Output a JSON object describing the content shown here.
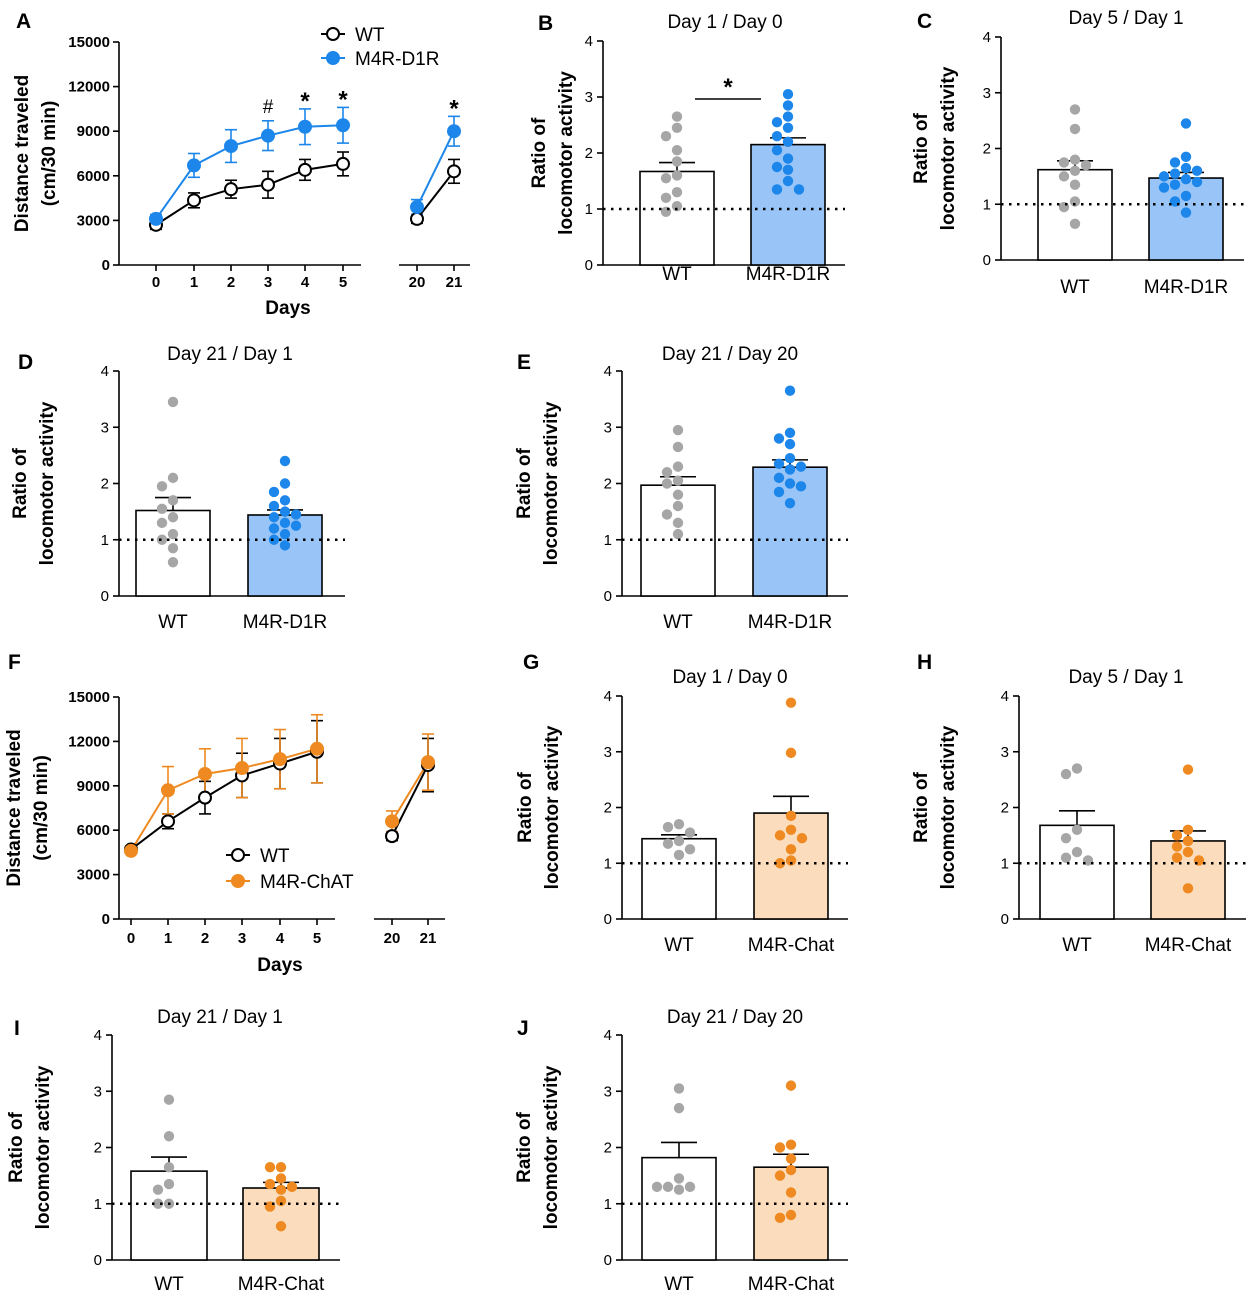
{
  "colors": {
    "wt_point": "#a6a6a6",
    "d1r_line": "#1c86ea",
    "d1r_bar": "#98c4f7",
    "chat_line": "#ee8a21",
    "chat_bar": "#fbdcbd"
  },
  "chart_data": [
    {
      "id": "A",
      "type": "line",
      "panel_label": "A",
      "xlabel": "Days",
      "ylabel": [
        "Distance traveled",
        "(cm/30 min)"
      ],
      "ylim": [
        0,
        15000
      ],
      "yticks": [
        0,
        3000,
        6000,
        9000,
        12000,
        15000
      ],
      "x_groups": [
        [
          "0",
          "1",
          "2",
          "3",
          "4",
          "5"
        ],
        [
          "20",
          "21"
        ]
      ],
      "legend": [
        "WT",
        "M4R-D1R"
      ],
      "annotations": {
        "3": "#",
        "4": "*",
        "5": "*",
        "21": "*"
      },
      "series": [
        {
          "name": "WT",
          "days": [
            "0",
            "1",
            "2",
            "3",
            "4",
            "5",
            "20",
            "21"
          ],
          "values": [
            2700,
            4350,
            5100,
            5400,
            6400,
            6800,
            3100,
            6300
          ],
          "errors": [
            300,
            500,
            600,
            900,
            700,
            800,
            300,
            800
          ]
        },
        {
          "name": "M4R-D1R",
          "days": [
            "0",
            "1",
            "2",
            "3",
            "4",
            "5",
            "20",
            "21"
          ],
          "values": [
            3100,
            6700,
            8000,
            8700,
            9300,
            9400,
            3900,
            9000
          ],
          "errors": [
            300,
            800,
            1100,
            1000,
            1200,
            1200,
            500,
            1000
          ]
        }
      ]
    },
    {
      "id": "B",
      "type": "bar",
      "panel_label": "B",
      "title": "Day 1 / Day 0",
      "ylabel": [
        "Ratio  of",
        "locomotor activity"
      ],
      "ylim": [
        0,
        4
      ],
      "yticks": [
        0,
        1,
        2,
        3,
        4
      ],
      "categories": [
        "WT",
        "M4R-D1R"
      ],
      "values": [
        1.67,
        2.15
      ],
      "errors": [
        0.16,
        0.12
      ],
      "points": [
        [
          2.65,
          2.45,
          2.3,
          2.05,
          1.85,
          1.6,
          1.55,
          1.3,
          1.2,
          1.05,
          0.95
        ],
        [
          3.05,
          2.85,
          2.65,
          2.55,
          2.45,
          2.3,
          2.2,
          2.05,
          1.9,
          1.75,
          1.7,
          1.5,
          1.35,
          1.35
        ]
      ],
      "significance": "*",
      "refline": 1
    },
    {
      "id": "C",
      "type": "bar",
      "panel_label": "C",
      "title": "Day 5 / Day 1",
      "ylabel": [
        "Ratio  of",
        "locomotor activity"
      ],
      "ylim": [
        0,
        4
      ],
      "yticks": [
        0,
        1,
        2,
        3,
        4
      ],
      "categories": [
        "WT",
        "M4R-D1R"
      ],
      "values": [
        1.62,
        1.47
      ],
      "errors": [
        0.16,
        0.1
      ],
      "points": [
        [
          2.7,
          2.35,
          1.8,
          1.75,
          1.7,
          1.6,
          1.5,
          1.35,
          1.05,
          0.95,
          0.65
        ],
        [
          2.45,
          1.85,
          1.75,
          1.65,
          1.6,
          1.55,
          1.5,
          1.45,
          1.4,
          1.35,
          1.3,
          1.15,
          1.05,
          0.85
        ]
      ],
      "significance": "",
      "refline": 1
    },
    {
      "id": "D",
      "type": "bar",
      "panel_label": "D",
      "title": "Day 21 / Day 1",
      "ylabel": [
        "Ratio  of",
        "locomotor activity"
      ],
      "ylim": [
        0,
        4
      ],
      "yticks": [
        0,
        1,
        2,
        3,
        4
      ],
      "categories": [
        "WT",
        "M4R-D1R"
      ],
      "values": [
        1.52,
        1.44
      ],
      "errors": [
        0.23,
        0.09
      ],
      "points": [
        [
          3.45,
          2.1,
          1.95,
          1.7,
          1.55,
          1.4,
          1.3,
          1.1,
          1.0,
          0.85,
          0.6
        ],
        [
          2.4,
          2.0,
          1.85,
          1.7,
          1.6,
          1.5,
          1.45,
          1.4,
          1.3,
          1.25,
          1.2,
          1.1,
          1.0,
          0.9
        ]
      ],
      "significance": "",
      "refline": 1
    },
    {
      "id": "E",
      "type": "bar",
      "panel_label": "E",
      "title": "Day 21 / Day 20",
      "ylabel": [
        "Ratio  of",
        "locomotor activity"
      ],
      "ylim": [
        0,
        4
      ],
      "yticks": [
        0,
        1,
        2,
        3,
        4
      ],
      "categories": [
        "WT",
        "M4R-D1R"
      ],
      "values": [
        1.97,
        2.29
      ],
      "errors": [
        0.15,
        0.13
      ],
      "points": [
        [
          2.95,
          2.65,
          2.3,
          2.2,
          2.05,
          2.0,
          1.8,
          1.6,
          1.45,
          1.3,
          1.1
        ],
        [
          3.65,
          2.9,
          2.8,
          2.7,
          2.45,
          2.35,
          2.3,
          2.25,
          2.1,
          2.0,
          1.95,
          1.85,
          1.65
        ]
      ],
      "significance": "",
      "refline": 1
    },
    {
      "id": "F",
      "type": "line",
      "panel_label": "F",
      "xlabel": "Days",
      "ylabel": [
        "Distance traveled",
        "(cm/30 min)"
      ],
      "ylim": [
        0,
        15000
      ],
      "yticks": [
        0,
        3000,
        6000,
        9000,
        12000,
        15000
      ],
      "x_groups": [
        [
          "0",
          "1",
          "2",
          "3",
          "4",
          "5"
        ],
        [
          "20",
          "21"
        ]
      ],
      "legend": [
        "WT",
        "M4R-ChAT"
      ],
      "annotations": {},
      "series": [
        {
          "name": "WT",
          "days": [
            "0",
            "1",
            "2",
            "3",
            "4",
            "5",
            "20",
            "21"
          ],
          "values": [
            4700,
            6600,
            8200,
            9700,
            10500,
            11300,
            5600,
            10400
          ],
          "errors": [
            200,
            500,
            1100,
            1500,
            1700,
            2100,
            300,
            1800
          ]
        },
        {
          "name": "M4R-ChAT",
          "days": [
            "0",
            "1",
            "2",
            "3",
            "4",
            "5",
            "20",
            "21"
          ],
          "values": [
            4600,
            8700,
            9800,
            10200,
            10800,
            11500,
            6600,
            10600
          ],
          "errors": [
            200,
            1600,
            1700,
            2000,
            2000,
            2300,
            700,
            1900
          ]
        }
      ]
    },
    {
      "id": "G",
      "type": "bar",
      "panel_label": "G",
      "title": "Day 1 / Day 0",
      "ylabel": [
        "Ratio  of",
        "locomotor activity"
      ],
      "ylim": [
        0,
        4
      ],
      "yticks": [
        0,
        1,
        2,
        3,
        4
      ],
      "categories": [
        "WT",
        "M4R-Chat"
      ],
      "values": [
        1.44,
        1.9
      ],
      "errors": [
        0.07,
        0.3
      ],
      "points": [
        [
          1.7,
          1.65,
          1.55,
          1.4,
          1.35,
          1.25,
          1.15
        ],
        [
          3.88,
          2.98,
          1.85,
          1.6,
          1.5,
          1.45,
          1.25,
          1.05,
          1.0
        ]
      ],
      "significance": "",
      "refline": 1
    },
    {
      "id": "H",
      "type": "bar",
      "panel_label": "H",
      "title": "Day 5 / Day 1",
      "ylabel": [
        "Ratio  of",
        "locomotor activity"
      ],
      "ylim": [
        0,
        4
      ],
      "yticks": [
        0,
        1,
        2,
        3,
        4
      ],
      "categories": [
        "WT",
        "M4R-Chat"
      ],
      "values": [
        1.68,
        1.4
      ],
      "errors": [
        0.26,
        0.18
      ],
      "points": [
        [
          2.7,
          2.6,
          1.6,
          1.45,
          1.2,
          1.1,
          1.05
        ],
        [
          2.68,
          1.6,
          1.5,
          1.4,
          1.3,
          1.2,
          1.1,
          1.05,
          0.55
        ]
      ],
      "significance": "",
      "refline": 1
    },
    {
      "id": "I",
      "type": "bar",
      "panel_label": "I",
      "title": "Day 21 / Day 1",
      "ylabel": [
        "Ratio  of",
        "locomotor activity"
      ],
      "ylim": [
        0,
        4
      ],
      "yticks": [
        0,
        1,
        2,
        3,
        4
      ],
      "categories": [
        "WT",
        "M4R-Chat"
      ],
      "values": [
        1.58,
        1.28
      ],
      "errors": [
        0.25,
        0.1
      ],
      "points": [
        [
          2.85,
          2.2,
          1.65,
          1.35,
          1.25,
          1.0,
          1.0
        ],
        [
          1.65,
          1.65,
          1.45,
          1.35,
          1.3,
          1.25,
          1.05,
          0.95,
          0.6
        ]
      ],
      "significance": "",
      "refline": 1
    },
    {
      "id": "J",
      "type": "bar",
      "panel_label": "J",
      "title": "Day 21 / Day 20",
      "ylabel": [
        "Ratio  of",
        "locomotor activity"
      ],
      "ylim": [
        0,
        4
      ],
      "yticks": [
        0,
        1,
        2,
        3,
        4
      ],
      "categories": [
        "WT",
        "M4R-Chat"
      ],
      "values": [
        1.82,
        1.65
      ],
      "errors": [
        0.27,
        0.23
      ],
      "points": [
        [
          3.05,
          2.7,
          1.45,
          1.3,
          1.3,
          1.3,
          1.25
        ],
        [
          3.1,
          2.05,
          2.0,
          1.8,
          1.6,
          1.5,
          1.2,
          0.8,
          0.75
        ]
      ],
      "significance": "",
      "refline": 1
    }
  ]
}
